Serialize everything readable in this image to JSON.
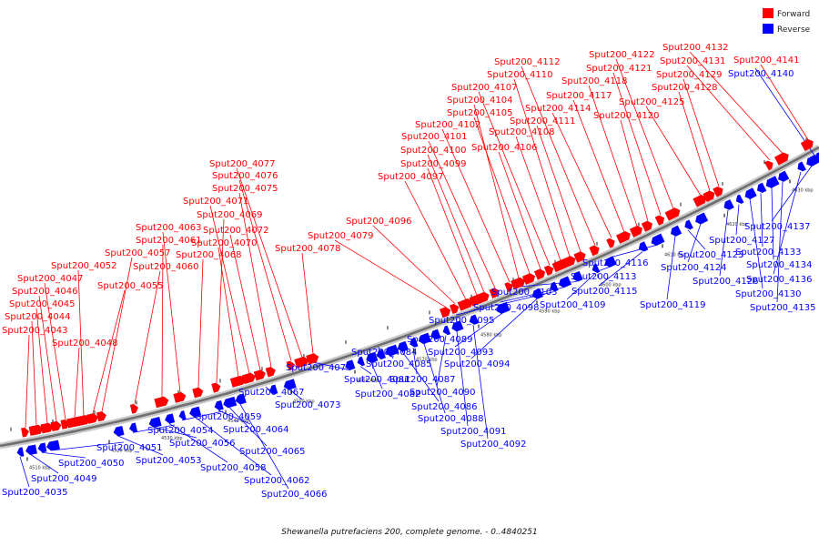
{
  "legend": {
    "forward_label": "Forward",
    "reverse_label": "Reverse",
    "forward_color": "#ff0000",
    "reverse_color": "#0000ff"
  },
  "caption": "Shewanella putrefaciens 200, complete genome. - 0..4840251",
  "tick_labels": [
    "4510 kbp",
    "4520 kbp",
    "4530 kbp",
    "4540 kbp",
    "4550 kbp",
    "4560 kbp",
    "4570 kbp",
    "4580 kbp",
    "4590 kbp",
    "4600 kbp",
    "4610 kbp",
    "4620 kbp",
    "4630 kbp"
  ],
  "forward_genes": [
    "Sput200_4043",
    "Sput200_4044",
    "Sput200_4045",
    "Sput200_4046",
    "Sput200_4047",
    "Sput200_4048",
    "Sput200_4052",
    "Sput200_4055",
    "Sput200_4057",
    "Sput200_4060",
    "Sput200_4061",
    "Sput200_4063",
    "Sput200_4068",
    "Sput200_4069",
    "Sput200_4070",
    "Sput200_4071",
    "Sput200_4072",
    "Sput200_4075",
    "Sput200_4076",
    "Sput200_4077",
    "Sput200_4078",
    "Sput200_4079",
    "Sput200_4096",
    "Sput200_4097",
    "Sput200_4099",
    "Sput200_4100",
    "Sput200_4101",
    "Sput200_4102",
    "Sput200_4104",
    "Sput200_4105",
    "Sput200_4106",
    "Sput200_4107",
    "Sput200_4108",
    "Sput200_4110",
    "Sput200_4111",
    "Sput200_4112",
    "Sput200_4114",
    "Sput200_4117",
    "Sput200_4118",
    "Sput200_4120",
    "Sput200_4121",
    "Sput200_4122",
    "Sput200_4125",
    "Sput200_4128",
    "Sput200_4129",
    "Sput200_4131",
    "Sput200_4132",
    "Sput200_4141"
  ],
  "reverse_genes": [
    "Sput200_4035",
    "Sput200_4049",
    "Sput200_4050",
    "Sput200_4051",
    "Sput200_4053",
    "Sput200_4054",
    "Sput200_4056",
    "Sput200_4058",
    "Sput200_4059",
    "Sput200_4062",
    "Sput200_4064",
    "Sput200_4065",
    "Sput200_4066",
    "Sput200_4067",
    "Sput200_4073",
    "Sput200_4074",
    "Sput200_4081",
    "Sput200_4082",
    "Sput200_4084",
    "Sput200_4085",
    "Sput200_4086",
    "Sput200_4087",
    "Sput200_4088",
    "Sput200_4089",
    "Sput200_4090",
    "Sput200_4091",
    "Sput200_4092",
    "Sput200_4093",
    "Sput200_4094",
    "Sput200_4095",
    "Sput200_4098",
    "Sput200_4103",
    "Sput200_4109",
    "Sput200_4113",
    "Sput200_4115",
    "Sput200_4116",
    "Sput200_4119",
    "Sput200_4123",
    "Sput200_4124",
    "Sput200_4126",
    "Sput200_4127",
    "Sput200_4130",
    "Sput200_4133",
    "Sput200_4134",
    "Sput200_4135",
    "Sput200_4136",
    "Sput200_4137",
    "Sput200_4140"
  ]
}
